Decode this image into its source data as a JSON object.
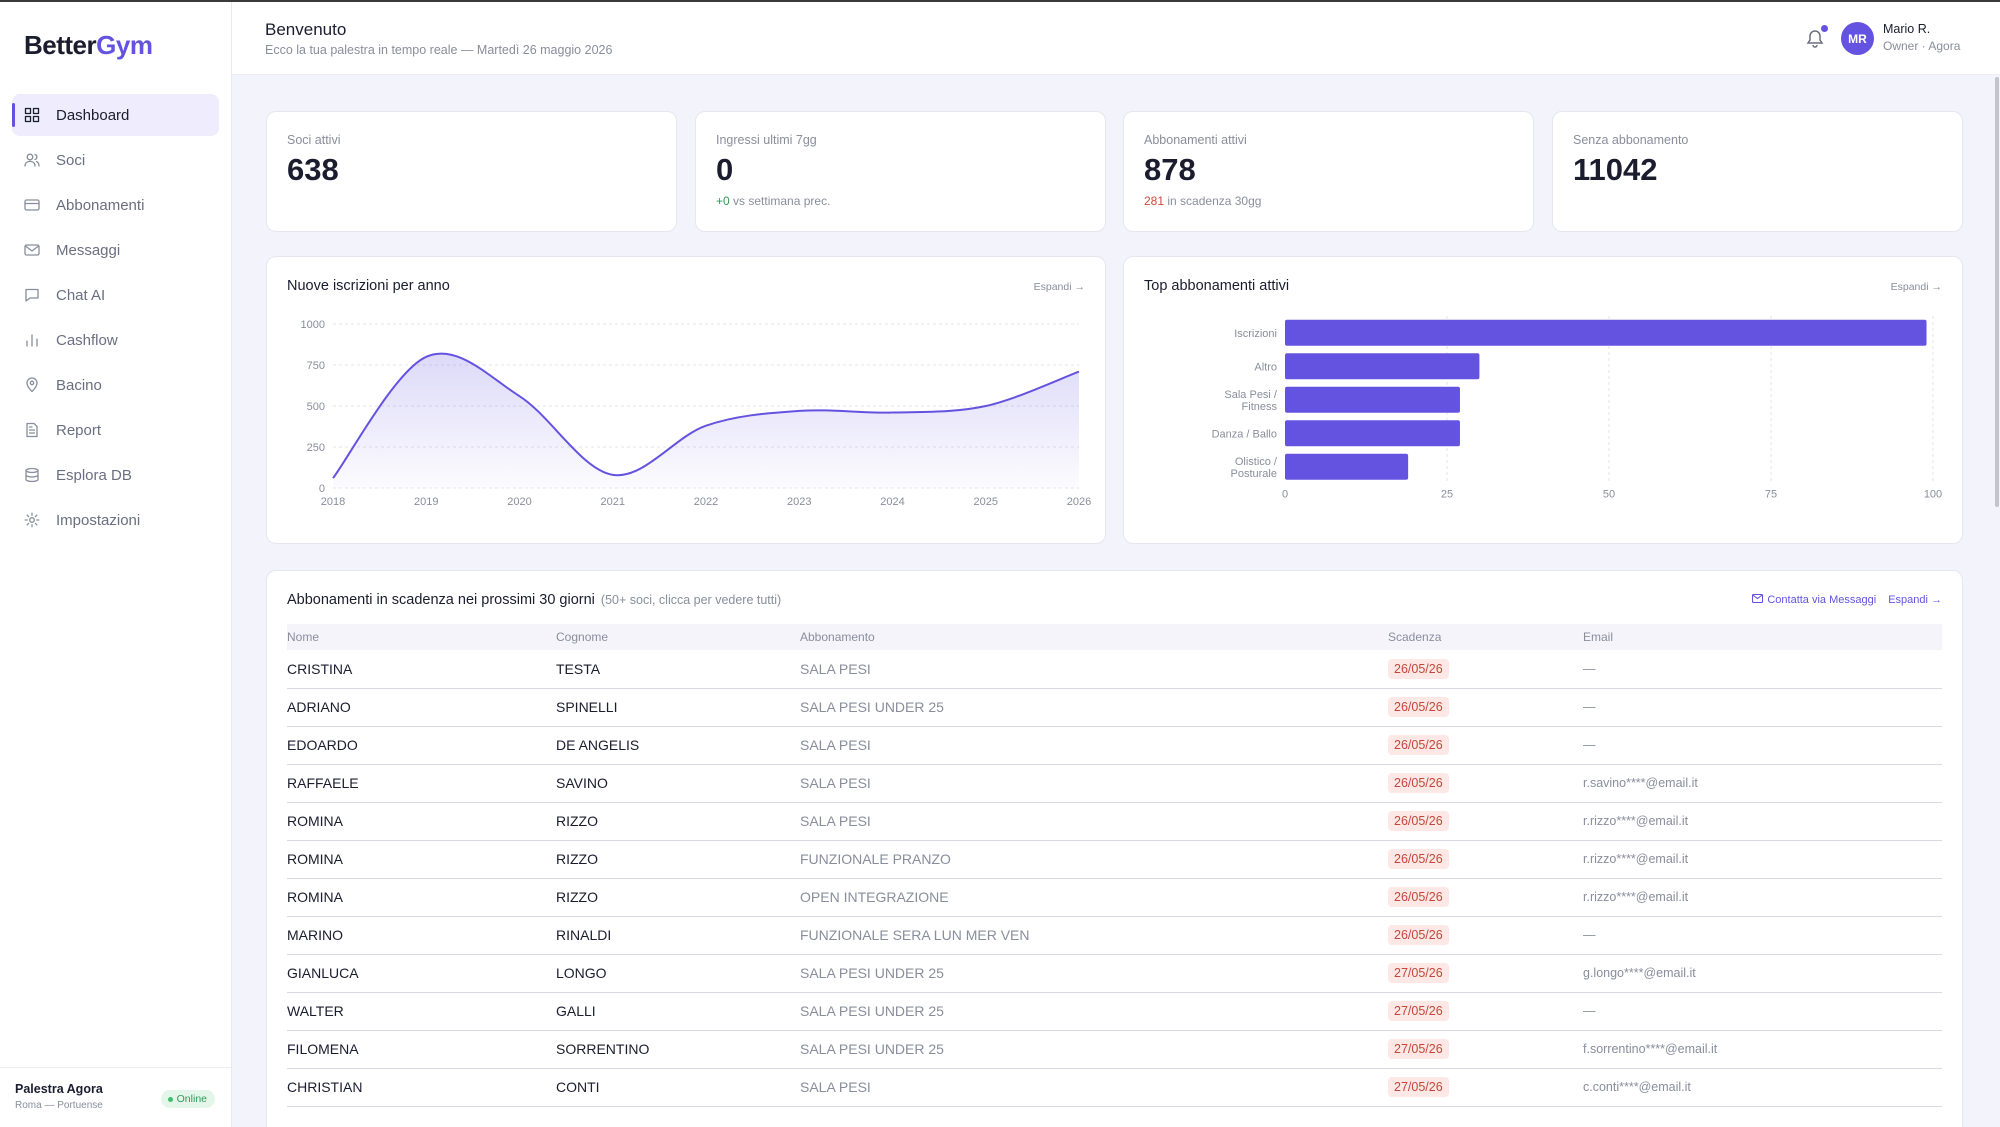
{
  "brand": {
    "name_part1": "Better",
    "name_part2": "Gym"
  },
  "sidebar": {
    "items": [
      {
        "label": "Dashboard",
        "icon": "grid-icon",
        "active": true
      },
      {
        "label": "Soci",
        "icon": "users-icon"
      },
      {
        "label": "Abbonamenti",
        "icon": "credit-card-icon"
      },
      {
        "label": "Messaggi",
        "icon": "mail-icon"
      },
      {
        "label": "Chat AI",
        "icon": "chat-icon"
      },
      {
        "label": "Cashflow",
        "icon": "bar-chart-icon"
      },
      {
        "label": "Bacino",
        "icon": "map-pin-icon"
      },
      {
        "label": "Report",
        "icon": "file-icon"
      },
      {
        "label": "Esplora DB",
        "icon": "database-icon"
      },
      {
        "label": "Impostazioni",
        "icon": "gear-icon"
      }
    ],
    "footer": {
      "gym_name": "Palestra Agora",
      "location": "Roma — Portuense",
      "status": "Online"
    }
  },
  "header": {
    "title": "Benvenuto",
    "subtitle": "Ecco la tua palestra in tempo reale — Martedì 26 maggio 2026",
    "user": {
      "initials": "MR",
      "name": "Mario R.",
      "role": "Owner · Agora"
    }
  },
  "stats": [
    {
      "label": "Soci attivi",
      "value": "638"
    },
    {
      "label": "Ingressi ultimi 7gg",
      "value": "0",
      "delta": "+0",
      "sub": "vs settimana prec."
    },
    {
      "label": "Abbonamenti attivi",
      "value": "878",
      "delta": "281",
      "sub": "in scadenza 30gg"
    },
    {
      "label": "Senza abbonamento",
      "value": "11042"
    }
  ],
  "charts": {
    "line": {
      "title": "Nuove iscrizioni per anno",
      "expand": "Espandi →"
    },
    "bar": {
      "title": "Top abbonamenti attivi",
      "expand": "Espandi →"
    }
  },
  "chart_data": [
    {
      "type": "area",
      "title": "Nuove iscrizioni per anno",
      "x": [
        "2018",
        "2019",
        "2020",
        "2021",
        "2022",
        "2023",
        "2024",
        "2025",
        "2026"
      ],
      "y": [
        60,
        800,
        560,
        80,
        380,
        470,
        460,
        500,
        710
      ],
      "ylim": [
        0,
        1000
      ],
      "yticks": [
        0,
        250,
        500,
        750,
        1000
      ],
      "grid": true,
      "color": "#6453e0"
    },
    {
      "type": "bar",
      "orientation": "horizontal",
      "title": "Top abbonamenti attivi",
      "categories": [
        "Iscrizioni",
        "Altro",
        "Sala Pesi / Fitness",
        "Danza / Ballo",
        "Olistico / Posturale"
      ],
      "values": [
        99,
        30,
        27,
        27,
        19
      ],
      "xlim": [
        0,
        100
      ],
      "xticks": [
        0,
        25,
        50,
        75,
        100
      ],
      "grid": true,
      "color": "#6453e0"
    }
  ],
  "expiring": {
    "title": "Abbonamenti in scadenza nei prossimi 30 giorni",
    "note": "(50+ soci, clicca per vedere tutti)",
    "contact_label": "Contatta via Messaggi",
    "expand_label": "Espandi →",
    "columns": [
      "Nome",
      "Cognome",
      "Abbonamento",
      "Scadenza",
      "Email"
    ],
    "rows": [
      [
        "CRISTINA",
        "TESTA",
        "SALA PESI",
        "26/05/26",
        "—"
      ],
      [
        "ADRIANO",
        "SPINELLI",
        "SALA PESI UNDER 25",
        "26/05/26",
        "—"
      ],
      [
        "EDOARDO",
        "DE ANGELIS",
        "SALA PESI",
        "26/05/26",
        "—"
      ],
      [
        "RAFFAELE",
        "SAVINO",
        "SALA PESI",
        "26/05/26",
        "r.savino****@email.it"
      ],
      [
        "ROMINA",
        "RIZZO",
        "SALA PESI",
        "26/05/26",
        "r.rizzo****@email.it"
      ],
      [
        "ROMINA",
        "RIZZO",
        "FUNZIONALE PRANZO",
        "26/05/26",
        "r.rizzo****@email.it"
      ],
      [
        "ROMINA",
        "RIZZO",
        "OPEN INTEGRAZIONE",
        "26/05/26",
        "r.rizzo****@email.it"
      ],
      [
        "MARINO",
        "RINALDI",
        "FUNZIONALE SERA LUN MER VEN",
        "26/05/26",
        "—"
      ],
      [
        "GIANLUCA",
        "LONGO",
        "SALA PESI UNDER 25",
        "27/05/26",
        "g.longo****@email.it"
      ],
      [
        "WALTER",
        "GALLI",
        "SALA PESI UNDER 25",
        "27/05/26",
        "—"
      ],
      [
        "FILOMENA",
        "SORRENTINO",
        "SALA PESI UNDER 25",
        "27/05/26",
        "f.sorrentino****@email.it"
      ],
      [
        "CHRISTIAN",
        "CONTI",
        "SALA PESI",
        "27/05/26",
        "c.conti****@email.it"
      ]
    ]
  }
}
